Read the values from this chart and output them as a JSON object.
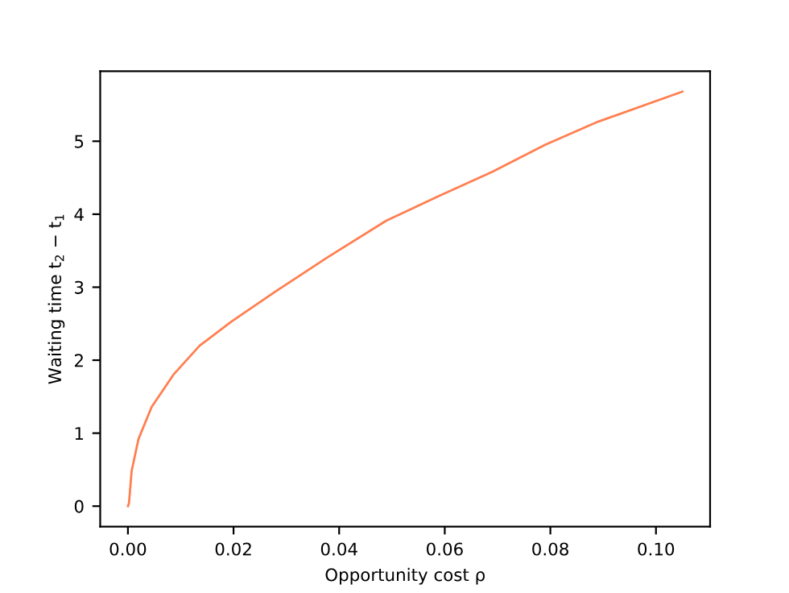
{
  "chart_data": {
    "type": "line",
    "xlabel": "Opportunity cost ρ",
    "ylabel": "Waiting time t$_{2}$ − t$_{1}$",
    "x": [
      0,
      0.0002,
      0.0007,
      0.002,
      0.0045,
      0.0086,
      0.0136,
      0.0196,
      0.0277,
      0.0378,
      0.0489,
      0.0589,
      0.069,
      0.079,
      0.0891,
      0.105
    ],
    "series": [
      {
        "color": "#ff7f50",
        "values": [
          0,
          0.04,
          0.48,
          0.92,
          1.36,
          1.8,
          2.2,
          2.53,
          2.93,
          3.41,
          3.91,
          4.25,
          4.58,
          4.95,
          5.27,
          5.68
        ]
      }
    ],
    "xlim": [
      -0.00525,
      0.11025
    ],
    "ylim": [
      -0.28,
      5.96
    ],
    "xticks": [
      {
        "value": 0,
        "label": "0.00"
      },
      {
        "value": 0.02,
        "label": "0.02"
      },
      {
        "value": 0.04,
        "label": "0.04"
      },
      {
        "value": 0.06,
        "label": "0.06"
      },
      {
        "value": 0.08,
        "label": "0.08"
      },
      {
        "value": 0.1,
        "label": "0.10"
      }
    ],
    "yticks": [
      0,
      1,
      2,
      3,
      4,
      5
    ],
    "grid": false,
    "marker": "none",
    "line_style": "solid"
  }
}
